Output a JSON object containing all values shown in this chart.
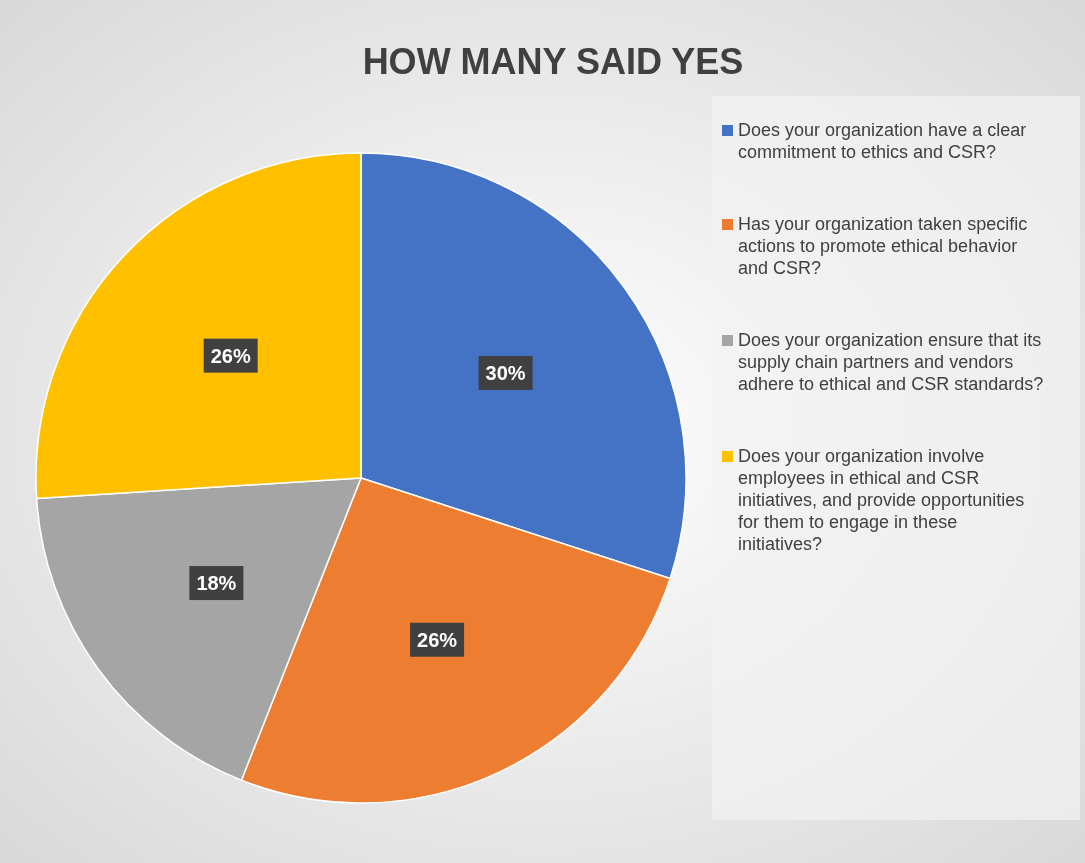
{
  "chart_data": {
    "type": "pie",
    "title": "HOW MANY SAID YES",
    "categories": [
      "Does your organization have a clear commitment to ethics and CSR?",
      "Has your organization taken specific actions to promote ethical behavior and CSR?",
      "Does your organization ensure that its supply chain partners and vendors adhere to ethical and CSR standards?",
      "Does your organization involve employees in ethical and CSR initiatives, and provide opportunities for them to engage in these initiatives?"
    ],
    "values": [
      30,
      26,
      18,
      26
    ],
    "value_labels": [
      "30%",
      "26%",
      "18%",
      "26%"
    ],
    "colors": [
      "#4472c4",
      "#ed7d31",
      "#a5a5a5",
      "#ffc000"
    ],
    "legend": "right"
  }
}
